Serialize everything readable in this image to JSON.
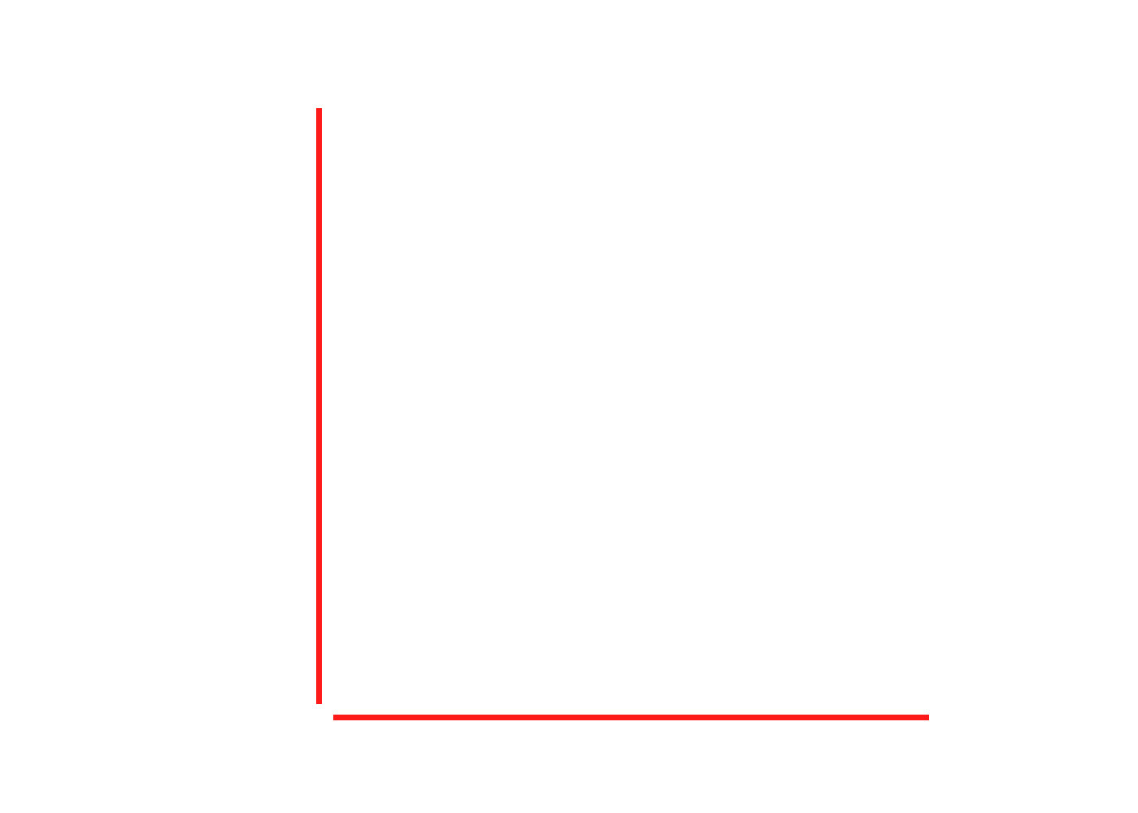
{
  "chart_data": {
    "type": "line",
    "title": "",
    "xlabel": "",
    "ylabel": "",
    "series": [],
    "grid": false,
    "axis_color": "#ff1a1a"
  }
}
